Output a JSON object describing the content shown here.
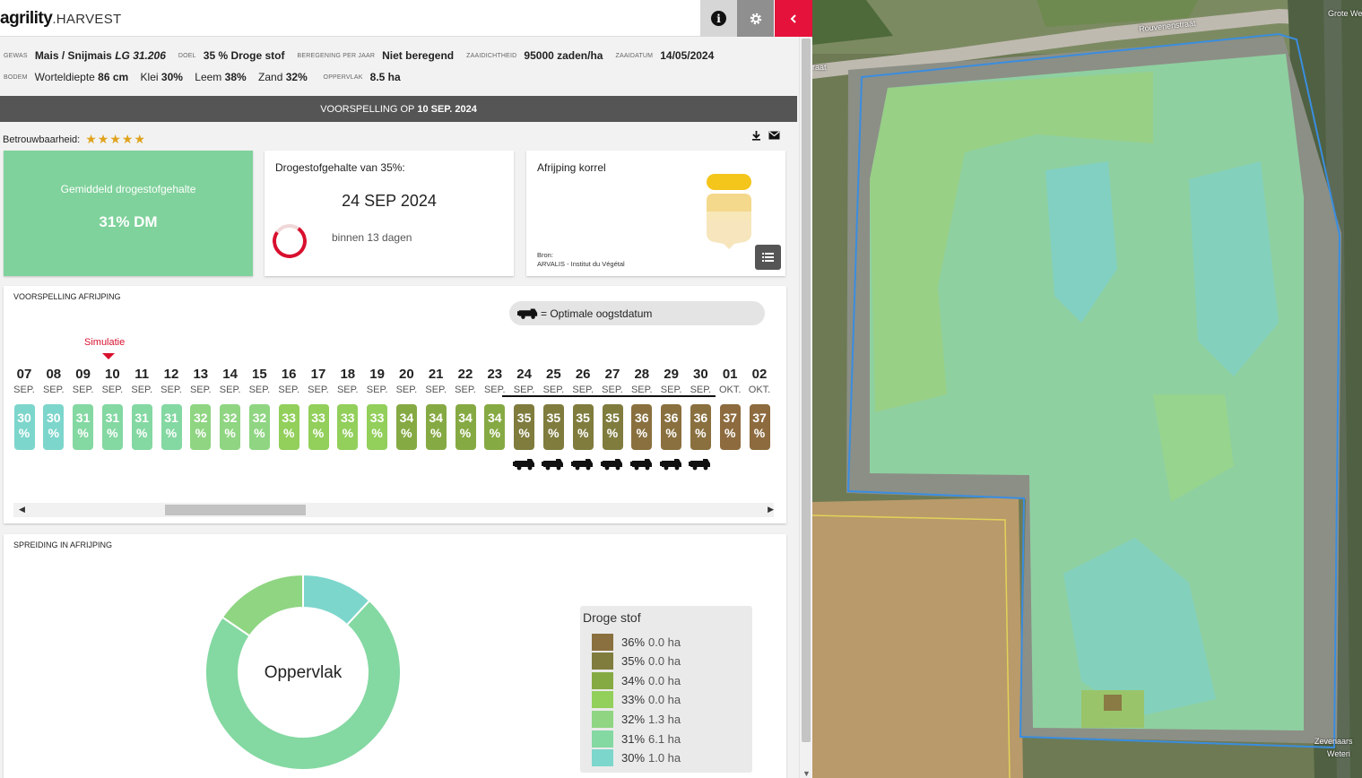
{
  "app": {
    "brand_main": "agrility",
    "brand_suffix": ".HARVEST"
  },
  "toolbar": {
    "info_icon": "info-icon",
    "settings_icon": "gear-icon",
    "collapse_icon": "chevron-left-icon"
  },
  "info": {
    "gewas_label": "Gewas",
    "gewas_value": "Mais / Snijmais",
    "gewas_variety": "LG 31.206",
    "doel_label": "Doel",
    "doel_value": "35 % Droge stof",
    "beregening_label": "Beregening per jaar",
    "beregening_value": "Niet beregend",
    "zaaidichtheid_label": "Zaaidichtheid",
    "zaaidichtheid_value": "95000 zaden/ha",
    "zaaidatum_label": "Zaaidatum",
    "zaaidatum_value": "14/05/2024",
    "bodem_label": "Bodem",
    "wortel_label": "Worteldiepte",
    "wortel_value": "86 cm",
    "klei_label": "Klei",
    "klei_value": "30%",
    "leem_label": "Leem",
    "leem_value": "38%",
    "zand_label": "Zand",
    "zand_value": "32%",
    "oppervlak_label": "Oppervlak",
    "oppervlak_value": "8.5 ha"
  },
  "prediction": {
    "prefix": "VOORSPELLING OP",
    "date": "10 SEP. 2024"
  },
  "reliability": {
    "label": "Betrouwbaarheid:",
    "stars": "★★★★★",
    "rating": 5
  },
  "cards": {
    "avg_title": "Gemiddeld drogestofgehalte",
    "avg_value": "31% DM",
    "dm_title": "Drogestofgehalte van 35%:",
    "dm_date": "24 SEP 2024",
    "dm_sub": "binnen 13 dagen",
    "kor_title": "Afrijping korrel",
    "kor_src1": "Bron:",
    "kor_src2": "ARVALIS - Institut du Végétal"
  },
  "forecast": {
    "title": "Voorspelling afrijping",
    "legend_text": "= Optimale oogstdatum",
    "simulation_label": "Simulatie",
    "days": [
      {
        "d": "07",
        "m": "SEP.",
        "v": "30",
        "c": "#7dd6cc",
        "h": false
      },
      {
        "d": "08",
        "m": "SEP.",
        "v": "30",
        "c": "#7dd6cc",
        "h": false
      },
      {
        "d": "09",
        "m": "SEP.",
        "v": "31",
        "c": "#84d8a2",
        "h": false
      },
      {
        "d": "10",
        "m": "SEP.",
        "v": "31",
        "c": "#84d8a2",
        "h": false
      },
      {
        "d": "11",
        "m": "SEP.",
        "v": "31",
        "c": "#84d8a2",
        "h": false
      },
      {
        "d": "12",
        "m": "SEP.",
        "v": "31",
        "c": "#84d8a2",
        "h": false
      },
      {
        "d": "13",
        "m": "SEP.",
        "v": "32",
        "c": "#8fd582",
        "h": false
      },
      {
        "d": "14",
        "m": "SEP.",
        "v": "32",
        "c": "#8fd582",
        "h": false
      },
      {
        "d": "15",
        "m": "SEP.",
        "v": "32",
        "c": "#8fd582",
        "h": false
      },
      {
        "d": "16",
        "m": "SEP.",
        "v": "33",
        "c": "#92cf5b",
        "h": false
      },
      {
        "d": "17",
        "m": "SEP.",
        "v": "33",
        "c": "#92cf5b",
        "h": false
      },
      {
        "d": "18",
        "m": "SEP.",
        "v": "33",
        "c": "#92cf5b",
        "h": false
      },
      {
        "d": "19",
        "m": "SEP.",
        "v": "33",
        "c": "#92cf5b",
        "h": false
      },
      {
        "d": "20",
        "m": "SEP.",
        "v": "34",
        "c": "#86aa43",
        "h": false
      },
      {
        "d": "21",
        "m": "SEP.",
        "v": "34",
        "c": "#86aa43",
        "h": false
      },
      {
        "d": "22",
        "m": "SEP.",
        "v": "34",
        "c": "#86aa43",
        "h": false
      },
      {
        "d": "23",
        "m": "SEP.",
        "v": "34",
        "c": "#86aa43",
        "h": false
      },
      {
        "d": "24",
        "m": "SEP.",
        "v": "35",
        "c": "#7f7c3e",
        "h": true
      },
      {
        "d": "25",
        "m": "SEP.",
        "v": "35",
        "c": "#7f7c3e",
        "h": true
      },
      {
        "d": "26",
        "m": "SEP.",
        "v": "35",
        "c": "#7f7c3e",
        "h": true
      },
      {
        "d": "27",
        "m": "SEP.",
        "v": "35",
        "c": "#7f7c3e",
        "h": true
      },
      {
        "d": "28",
        "m": "SEP.",
        "v": "36",
        "c": "#8a703f",
        "h": true
      },
      {
        "d": "29",
        "m": "SEP.",
        "v": "36",
        "c": "#8a703f",
        "h": true
      },
      {
        "d": "30",
        "m": "SEP.",
        "v": "36",
        "c": "#8a703f",
        "h": true
      },
      {
        "d": "01",
        "m": "OKT.",
        "v": "37",
        "c": "#8d6b3e",
        "h": false
      },
      {
        "d": "02",
        "m": "OKT.",
        "v": "37",
        "c": "#8d6b3e",
        "h": false
      }
    ]
  },
  "spread": {
    "title": "Spreiding in afrijping",
    "center_label": "Oppervlak",
    "legend_title": "Droge stof",
    "legend": [
      {
        "pct": "36%",
        "ha": "0.0 ha",
        "color": "#8a703f"
      },
      {
        "pct": "35%",
        "ha": "0.0 ha",
        "color": "#7f7c3e"
      },
      {
        "pct": "34%",
        "ha": "0.0 ha",
        "color": "#86aa43"
      },
      {
        "pct": "33%",
        "ha": "0.0 ha",
        "color": "#92cf5b"
      },
      {
        "pct": "32%",
        "ha": "1.3 ha",
        "color": "#8fd582"
      },
      {
        "pct": "31%",
        "ha": "6.1 ha",
        "color": "#84d8a2"
      },
      {
        "pct": "30%",
        "ha": "1.0 ha",
        "color": "#7dd6cc"
      }
    ]
  },
  "chart_data": {
    "type": "pie",
    "title": "Spreiding in afrijping",
    "categories": [
      "30%",
      "31%",
      "32%",
      "33%",
      "34%",
      "35%",
      "36%"
    ],
    "values": [
      1.0,
      6.1,
      1.3,
      0.0,
      0.0,
      0.0,
      0.0
    ],
    "colors": [
      "#7dd6cc",
      "#84d8a2",
      "#8fd582",
      "#92cf5b",
      "#86aa43",
      "#7f7c3e",
      "#8a703f"
    ],
    "unit": "ha"
  },
  "map": {
    "street1": "Rouvenenstraat",
    "street2": "Grote We",
    "street3": "raat",
    "street4": "Zevenaars",
    "street5": "Weteri"
  }
}
